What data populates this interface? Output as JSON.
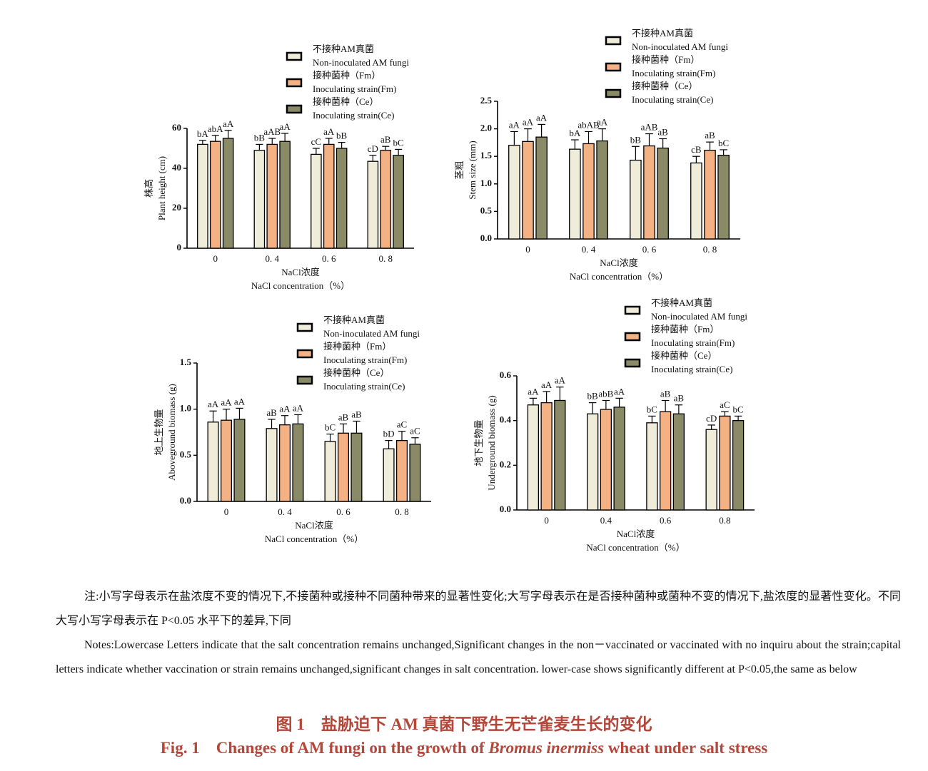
{
  "chart_data": [
    {
      "type": "bar",
      "y_label_cn": "株高",
      "y_label_en": "Plant height (cm)",
      "x_label_cn": "NaCl浓度",
      "x_label_en": "NaCl concentration（%）",
      "categories": [
        "0",
        "0. 4",
        "0. 6",
        "0. 8"
      ],
      "ylim": [
        0,
        60
      ],
      "yticks": [
        0,
        20,
        40,
        60
      ],
      "series": [
        {
          "name": "不接种AM真菌",
          "name_en": "Non-inoculated AM fungi",
          "color": "#efecd9",
          "values": [
            52,
            49,
            47,
            43.5
          ],
          "errors": [
            2,
            3,
            3,
            3
          ],
          "letters": [
            "bA",
            "bB",
            "cC",
            "cD"
          ]
        },
        {
          "name": "接种菌种（Fm）",
          "name_en": "Inoculating strain(Fm)",
          "color": "#f4b183",
          "values": [
            53.5,
            52,
            52,
            49
          ],
          "errors": [
            3,
            3,
            3,
            2
          ],
          "letters": [
            "abA",
            "aAB",
            "aA",
            "aB"
          ]
        },
        {
          "name": "接种菌种（Ce）",
          "name_en": "Inoculating strain(Ce)",
          "color": "#8a8a66",
          "values": [
            55,
            53.5,
            50,
            46.5
          ],
          "errors": [
            4,
            4,
            3,
            3
          ],
          "letters": [
            "aA",
            "aA",
            "bB",
            "bC"
          ]
        }
      ]
    },
    {
      "type": "bar",
      "y_label_cn": "茎粗",
      "y_label_en": "Stem size (mm)",
      "x_label_cn": "NaCl浓度",
      "x_label_en": "NaCl concentration（%）",
      "categories": [
        "0",
        "0. 4",
        "0. 6",
        "0. 8"
      ],
      "ylim": [
        0,
        2.5
      ],
      "yticks": [
        {
          "value": 0,
          "label": "0.0"
        },
        {
          "value": 0.5,
          "label": "0.5"
        },
        {
          "value": 1,
          "label": "1.0"
        },
        {
          "value": 1.5,
          "label": "1.5"
        },
        {
          "value": 2,
          "label": "2.0"
        },
        {
          "value": 2.5,
          "label": "2.5"
        }
      ],
      "series": [
        {
          "name": "不接种AM真菌",
          "name_en": "Non-inoculated AM fungi",
          "color": "#efecd9",
          "values": [
            1.7,
            1.63,
            1.43,
            1.38
          ],
          "errors": [
            0.25,
            0.17,
            0.25,
            0.12
          ],
          "letters": [
            "aA",
            "bA",
            "bB",
            "cB"
          ]
        },
        {
          "name": "接种菌种（Fm）",
          "name_en": "Inoculating strain(Fm)",
          "color": "#f4b183",
          "values": [
            1.77,
            1.73,
            1.69,
            1.61
          ],
          "errors": [
            0.23,
            0.22,
            0.22,
            0.15
          ],
          "letters": [
            "aA",
            "abAB",
            "aAB",
            "aB"
          ]
        },
        {
          "name": "接种菌种（Ce）",
          "name_en": "Inoculating strain(Ce)",
          "color": "#8a8a66",
          "values": [
            1.85,
            1.78,
            1.65,
            1.52
          ],
          "errors": [
            0.23,
            0.22,
            0.17,
            0.1
          ],
          "letters": [
            "aA",
            "aA",
            "aB",
            "bC"
          ]
        }
      ]
    },
    {
      "type": "bar",
      "y_label_cn": "地上生物量",
      "y_label_en": "Aboveground biomass (g)",
      "x_label_cn": "NaCl浓度",
      "x_label_en": "NaCl concentration（%）",
      "categories": [
        "0",
        "0. 4",
        "0. 6",
        "0. 8"
      ],
      "ylim": [
        0,
        1.5
      ],
      "yticks": [
        {
          "value": 0,
          "label": "0.0"
        },
        {
          "value": 0.5,
          "label": "0.5"
        },
        {
          "value": 1,
          "label": "1.0"
        },
        {
          "value": 1.5,
          "label": "1.5"
        }
      ],
      "series": [
        {
          "name": "不接种AM真菌",
          "name_en": "Non-inoculated AM fungi",
          "color": "#efecd9",
          "values": [
            0.86,
            0.79,
            0.65,
            0.57
          ],
          "errors": [
            0.12,
            0.1,
            0.08,
            0.09
          ],
          "letters": [
            "aA",
            "aB",
            "bC",
            "bD"
          ]
        },
        {
          "name": "接种菌种（Fm）",
          "name_en": "Inoculating strain(Fm)",
          "color": "#f4b183",
          "values": [
            0.88,
            0.83,
            0.74,
            0.66
          ],
          "errors": [
            0.12,
            0.1,
            0.1,
            0.1
          ],
          "letters": [
            "aA",
            "aA",
            "aB",
            "aC"
          ]
        },
        {
          "name": "接种菌种（Ce）",
          "name_en": "Inoculating strain(Ce)",
          "color": "#8a8a66",
          "values": [
            0.89,
            0.84,
            0.74,
            0.62
          ],
          "errors": [
            0.12,
            0.1,
            0.13,
            0.07
          ],
          "letters": [
            "aA",
            "aA",
            "aB",
            "aC"
          ]
        }
      ]
    },
    {
      "type": "bar",
      "y_label_cn": "地下生物量",
      "y_label_en": "Underground biomass (g)",
      "x_label_cn": "NaCl浓度",
      "x_label_en": "NaCl concentration（%）",
      "categories": [
        "0",
        "0.4",
        "0.6",
        "0.8"
      ],
      "ylim": [
        0,
        0.6
      ],
      "yticks": [
        {
          "value": 0,
          "label": "0.0"
        },
        {
          "value": 0.2,
          "label": "0.2"
        },
        {
          "value": 0.4,
          "label": "0.4"
        },
        {
          "value": 0.6,
          "label": "0.6"
        }
      ],
      "series": [
        {
          "name": "不接种AM真菌",
          "name_en": "Non-inoculated AM fungi",
          "color": "#efecd9",
          "values": [
            0.47,
            0.43,
            0.39,
            0.36
          ],
          "errors": [
            0.03,
            0.05,
            0.03,
            0.02
          ],
          "letters": [
            "aA",
            "bB",
            "bC",
            "cD"
          ]
        },
        {
          "name": "接种菌种（Fm）",
          "name_en": "Inoculating strain(Fm)",
          "color": "#f4b183",
          "values": [
            0.48,
            0.45,
            0.44,
            0.42
          ],
          "errors": [
            0.05,
            0.04,
            0.05,
            0.02
          ],
          "letters": [
            "aA",
            "abB",
            "aB",
            "aC"
          ]
        },
        {
          "name": "接种菌种（Ce）",
          "name_en": "Inoculating strain(Ce)",
          "color": "#8a8a66",
          "values": [
            0.49,
            0.46,
            0.43,
            0.4
          ],
          "errors": [
            0.06,
            0.04,
            0.04,
            0.02
          ],
          "letters": [
            "aA",
            "aA",
            "aB",
            "bC"
          ]
        }
      ]
    }
  ],
  "notes": {
    "cn": "注:小写字母表示在盐浓度不变的情况下,不接菌种或接种不同菌种带来的显著性变化;大写字母表示在是否接种菌种或菌种不变的情况下,盐浓度的显著性变化。不同大写小写字母表示在 P<0.05 水平下的差异,下同",
    "en": "Notes:Lowercase Letters indicate that the salt concentration remains unchanged,Significant changes in the non－vaccinated or vaccinated with no inquiru about the strain;capital letters indicate whether vaccination or strain remains unchanged,significant changes in salt concentration. lower-case shows significantly different at P<0.05,the same as below"
  },
  "caption": {
    "cn": "图 1　盐胁迫下 AM 真菌下野生无芒雀麦生长的变化",
    "en_label": "Fig. 1",
    "en_text": "Changes of AM fungi on the growth of",
    "en_species": "Bromus inermiss",
    "en_tail": "wheat under salt stress"
  }
}
